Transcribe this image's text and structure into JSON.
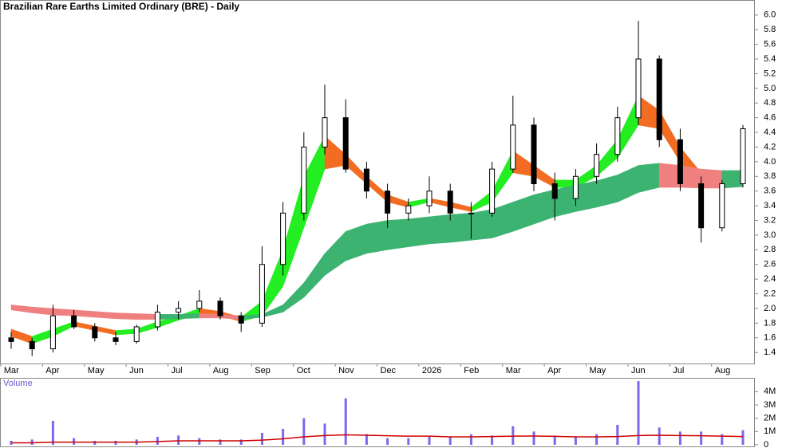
{
  "chart_data": [
    {
      "type": "candlestick",
      "title": "Brazilian Rare Earths Limited Ordinary (BRE) - Daily",
      "categories": [
        "Mar",
        null,
        "Apr",
        null,
        "May",
        null,
        "Jun",
        null,
        "Jul",
        null,
        "Aug",
        null,
        "Sep",
        null,
        "Oct",
        null,
        "Nov",
        null,
        "Dec",
        null,
        "2026",
        null,
        "Feb",
        null,
        "Mar",
        null,
        "Apr",
        null,
        "May",
        null,
        "Jun",
        null,
        "Jul",
        null,
        "Aug",
        null
      ],
      "open": [
        1.6,
        1.55,
        1.45,
        1.9,
        1.75,
        1.6,
        1.55,
        1.75,
        1.95,
        2.0,
        2.1,
        1.9,
        1.8,
        2.6,
        3.3,
        4.2,
        4.6,
        3.9,
        3.6,
        3.3,
        3.4,
        3.6,
        3.3,
        3.3,
        3.9,
        4.5,
        3.7,
        3.5,
        3.8,
        4.1,
        4.6,
        5.4,
        4.3,
        3.7,
        3.1,
        3.7
      ],
      "high": [
        1.68,
        1.6,
        2.05,
        1.98,
        1.8,
        1.68,
        1.78,
        2.05,
        2.1,
        2.25,
        2.15,
        1.95,
        2.85,
        3.45,
        4.4,
        5.05,
        4.85,
        4.0,
        3.7,
        3.5,
        3.8,
        3.7,
        3.45,
        4.0,
        4.9,
        4.6,
        3.85,
        3.9,
        4.25,
        4.75,
        5.92,
        5.45,
        4.45,
        3.8,
        3.75,
        4.5
      ],
      "low": [
        1.45,
        1.35,
        1.4,
        1.72,
        1.55,
        1.5,
        1.52,
        1.7,
        1.85,
        1.95,
        1.85,
        1.68,
        1.75,
        2.45,
        3.2,
        4.1,
        3.85,
        3.5,
        3.1,
        3.2,
        3.3,
        3.2,
        2.95,
        3.25,
        3.85,
        3.6,
        3.2,
        3.4,
        3.7,
        4.0,
        4.5,
        4.2,
        3.6,
        2.9,
        3.05,
        3.65
      ],
      "close": [
        1.55,
        1.45,
        1.9,
        1.75,
        1.6,
        1.55,
        1.75,
        1.95,
        2.0,
        2.1,
        1.9,
        1.8,
        2.6,
        3.3,
        4.2,
        4.6,
        3.9,
        3.6,
        3.3,
        3.4,
        3.6,
        3.3,
        3.3,
        3.9,
        4.5,
        3.7,
        3.5,
        3.8,
        4.1,
        4.6,
        5.4,
        4.3,
        3.7,
        3.1,
        3.7,
        4.45
      ],
      "bands": [
        {
          "name": "short-term",
          "rising_color": "#22ee22",
          "falling_color": "#f26d21",
          "upper": [
            1.72,
            1.62,
            1.72,
            1.82,
            1.76,
            1.7,
            1.72,
            1.82,
            1.9,
            2.0,
            1.96,
            1.88,
            2.1,
            2.8,
            3.8,
            4.35,
            4.1,
            3.8,
            3.55,
            3.45,
            3.5,
            3.45,
            3.38,
            3.6,
            4.15,
            3.95,
            3.75,
            3.75,
            3.95,
            4.3,
            4.9,
            4.7,
            4.2,
            3.85,
            3.8,
            3.9
          ],
          "lower": [
            1.62,
            1.52,
            1.62,
            1.76,
            1.7,
            1.64,
            1.66,
            1.74,
            1.84,
            1.92,
            1.9,
            1.82,
            1.9,
            2.3,
            3.1,
            3.9,
            3.95,
            3.7,
            3.45,
            3.38,
            3.45,
            3.38,
            3.32,
            3.45,
            3.85,
            3.8,
            3.65,
            3.65,
            3.8,
            4.05,
            4.5,
            4.45,
            4.0,
            3.65,
            3.7,
            3.72
          ]
        },
        {
          "name": "long-term",
          "rising_color": "#3cb371",
          "falling_color": "#f08080",
          "upper": [
            2.05,
            2.02,
            2.0,
            1.98,
            1.96,
            1.94,
            1.93,
            1.92,
            1.92,
            1.93,
            1.92,
            1.9,
            1.92,
            2.05,
            2.35,
            2.75,
            3.05,
            3.15,
            3.2,
            3.22,
            3.25,
            3.28,
            3.3,
            3.35,
            3.45,
            3.55,
            3.62,
            3.68,
            3.74,
            3.82,
            3.95,
            3.98,
            3.95,
            3.9,
            3.88,
            3.88
          ],
          "lower": [
            1.98,
            1.94,
            1.91,
            1.9,
            1.88,
            1.86,
            1.85,
            1.85,
            1.86,
            1.87,
            1.87,
            1.85,
            1.88,
            1.95,
            2.15,
            2.45,
            2.65,
            2.75,
            2.8,
            2.84,
            2.88,
            2.9,
            2.93,
            2.96,
            3.05,
            3.15,
            3.25,
            3.32,
            3.38,
            3.45,
            3.58,
            3.65,
            3.65,
            3.64,
            3.64,
            3.66
          ]
        }
      ],
      "ylim": [
        1.25,
        6.15
      ],
      "yticks": [
        1.4,
        1.6,
        1.8,
        {
          "value": 2,
          "label": "2.0"
        },
        2.2,
        2.4,
        2.6,
        2.8,
        {
          "value": 3,
          "label": "3.0"
        },
        3.2,
        3.4,
        3.6,
        3.8,
        {
          "value": 4,
          "label": "4.0"
        },
        4.2,
        4.4,
        4.6,
        4.8,
        {
          "value": 5,
          "label": "5.0"
        },
        5.2,
        5.4,
        5.6,
        5.8,
        {
          "value": 6,
          "label": "6.0"
        }
      ],
      "up_color": "#ffffff",
      "down_color": "#000000"
    },
    {
      "type": "bar",
      "title": "Volume",
      "color": "#7b68ee",
      "values": [
        300000,
        400000,
        1800000,
        500000,
        300000,
        300000,
        400000,
        600000,
        700000,
        500000,
        400000,
        400000,
        900000,
        1200000,
        2000000,
        1600000,
        3500000,
        800000,
        500000,
        500000,
        600000,
        600000,
        800000,
        700000,
        1400000,
        1000000,
        700000,
        600000,
        800000,
        1500000,
        4800000,
        1300000,
        1000000,
        1000000,
        800000,
        1100000
      ],
      "average": {
        "color": "#d00000",
        "values": [
          150000,
          150000,
          200000,
          200000,
          200000,
          200000,
          200000,
          250000,
          300000,
          300000,
          300000,
          300000,
          350000,
          450000,
          600000,
          700000,
          750000,
          720000,
          680000,
          650000,
          650000,
          600000,
          600000,
          620000,
          650000,
          660000,
          640000,
          600000,
          600000,
          620000,
          700000,
          720000,
          700000,
          680000,
          650000,
          620000
        ]
      },
      "ylim": [
        0,
        4800000
      ],
      "yticks": [
        0,
        {
          "value": 1000000,
          "label": "1M"
        },
        {
          "value": 2000000,
          "label": "2M"
        },
        {
          "value": 3000000,
          "label": "3M"
        },
        {
          "value": 4000000,
          "label": "4M"
        }
      ]
    }
  ]
}
